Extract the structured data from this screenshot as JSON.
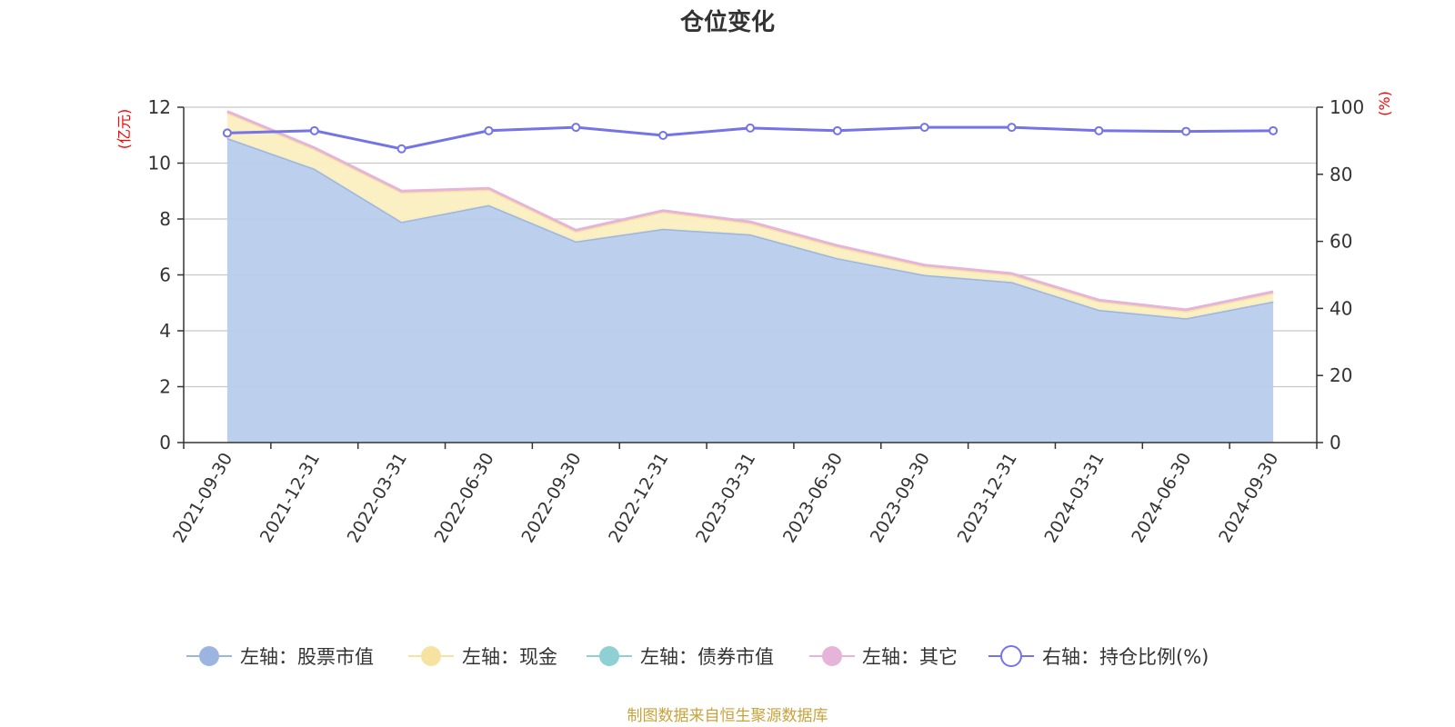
{
  "chart_data": {
    "type": "area",
    "title": "仓位变化",
    "y_left_label": "(亿元)",
    "y_right_label": "(%)",
    "y_left_lim": [
      0,
      12
    ],
    "y_left_ticks": [
      0,
      2,
      4,
      6,
      8,
      10,
      12
    ],
    "y_right_lim": [
      0,
      100
    ],
    "y_right_ticks": [
      0,
      20,
      40,
      60,
      80,
      100
    ],
    "grid": true,
    "legend_position": "bottom",
    "categories": [
      "2021-09-30",
      "2021-12-31",
      "2022-03-31",
      "2022-06-30",
      "2022-09-30",
      "2022-12-31",
      "2023-03-31",
      "2023-06-30",
      "2023-09-30",
      "2023-12-31",
      "2024-03-31",
      "2024-06-30",
      "2024-09-30"
    ],
    "stacked_series": [
      {
        "name": "左轴：股票市值",
        "axis": "left",
        "color": "#9bb5e0",
        "fill": "#b8cceb",
        "values": [
          10.9,
          9.8,
          7.9,
          8.5,
          7.2,
          7.65,
          7.45,
          6.6,
          6.0,
          5.75,
          4.75,
          4.45,
          5.05
        ]
      },
      {
        "name": "左轴：现金",
        "axis": "left",
        "color": "#f6e3a2",
        "fill": "#fbefc0",
        "values": [
          0.9,
          0.7,
          1.05,
          0.55,
          0.35,
          0.6,
          0.4,
          0.4,
          0.3,
          0.25,
          0.3,
          0.25,
          0.3
        ]
      },
      {
        "name": "左轴：债券市值",
        "axis": "left",
        "color": "#8fd0d4",
        "fill": "#b5e3e5",
        "values": [
          0,
          0,
          0,
          0,
          0,
          0,
          0,
          0,
          0,
          0,
          0,
          0,
          0
        ]
      },
      {
        "name": "左轴：其它",
        "axis": "left",
        "color": "#e6b4d8",
        "fill": "#f1cfe6",
        "values": [
          0.05,
          0.05,
          0.05,
          0.05,
          0.05,
          0.05,
          0.05,
          0.05,
          0.05,
          0.05,
          0.05,
          0.05,
          0.05
        ]
      }
    ],
    "line_series": {
      "name": "右轴：持仓比例(%)",
      "axis": "right",
      "color": "#7474e8",
      "values": [
        92.3,
        93.0,
        87.6,
        93.0,
        94.0,
        91.6,
        93.8,
        93.0,
        94.0,
        94.0,
        93.0,
        92.8,
        93.0
      ]
    }
  },
  "footer": {
    "source": "制图数据来自恒生聚源数据库"
  }
}
